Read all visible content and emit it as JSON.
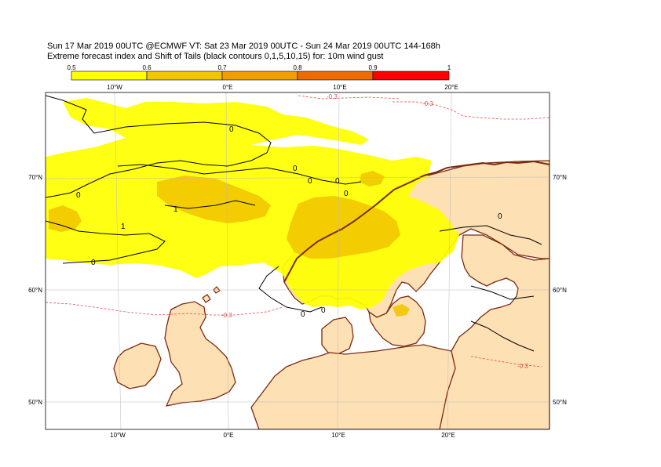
{
  "title_line1": "Sun 17 Mar 2019 00UTC @ECMWF VT: Sat 23 Mar 2019 00UTC - Sun 24 Mar 2019 00UTC  144-168h",
  "title_line2": "Extreme forecast index and Shift of Tails (black contours 0,1,5,10,15) for: 10m wind gust",
  "colorbar": {
    "ticks": [
      "0.5",
      "0.6",
      "0.7",
      "0.8",
      "0.9",
      "1"
    ],
    "colors": [
      "#ffff00",
      "#f2c600",
      "#f09e00",
      "#ef6a00",
      "#ff0000"
    ]
  },
  "axes": {
    "lon_labels": [
      "10°W",
      "0°E",
      "10°E",
      "20°E"
    ],
    "lat_labels": [
      "70°N",
      "60°N",
      "50°N"
    ]
  },
  "contour_labels": {
    "sot": [
      "0",
      "0",
      "0",
      "0",
      "0",
      "0",
      "1",
      "1",
      "0",
      "0",
      "0",
      "0"
    ],
    "efi": [
      "-0.3",
      "-0.3",
      "-0.3",
      "-0.3"
    ]
  },
  "colors": {
    "land": "#fde0b4",
    "coast": "#7a2a10",
    "efi_06": "#f2c600",
    "efi_05": "#ffff00",
    "neg_contour": "#e05050"
  }
}
